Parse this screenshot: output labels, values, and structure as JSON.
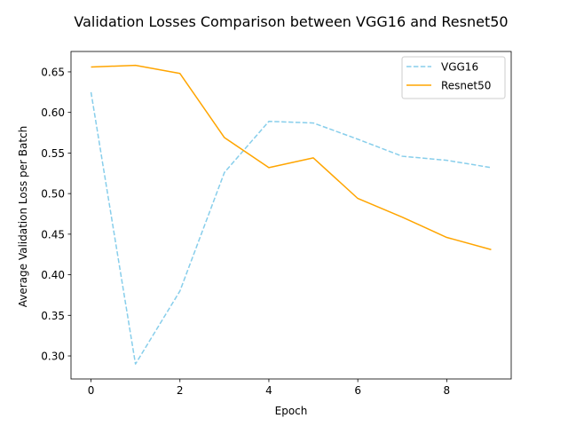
{
  "chart_data": {
    "type": "line",
    "title": "Validation Losses Comparison between VGG16 and Resnet50",
    "xlabel": "Epoch",
    "ylabel": "Average Validation Loss per Batch",
    "x": [
      0,
      1,
      2,
      3,
      4,
      5,
      6,
      7,
      8,
      9
    ],
    "xlim": [
      -0.45,
      9.45
    ],
    "ylim": [
      0.2716,
      0.6751
    ],
    "xticks": [
      0,
      2,
      4,
      6,
      8
    ],
    "yticks": [
      0.3,
      0.35,
      0.4,
      0.45,
      0.5,
      0.55,
      0.6,
      0.65
    ],
    "xtick_labels": [
      "0",
      "2",
      "4",
      "6",
      "8"
    ],
    "ytick_labels": [
      "0.30",
      "0.35",
      "0.40",
      "0.45",
      "0.50",
      "0.55",
      "0.60",
      "0.65"
    ],
    "grid": false,
    "legend_position": "top-right",
    "series": [
      {
        "name": "VGG16",
        "color": "#87ceeb",
        "style": "dashed",
        "values": [
          0.625,
          0.29,
          0.38,
          0.526,
          0.589,
          0.587,
          0.567,
          0.546,
          0.541,
          0.532
        ]
      },
      {
        "name": "Resnet50",
        "color": "#ffa500",
        "style": "solid",
        "values": [
          0.656,
          0.658,
          0.648,
          0.569,
          0.532,
          0.544,
          0.494,
          0.471,
          0.446,
          0.431
        ]
      }
    ]
  }
}
